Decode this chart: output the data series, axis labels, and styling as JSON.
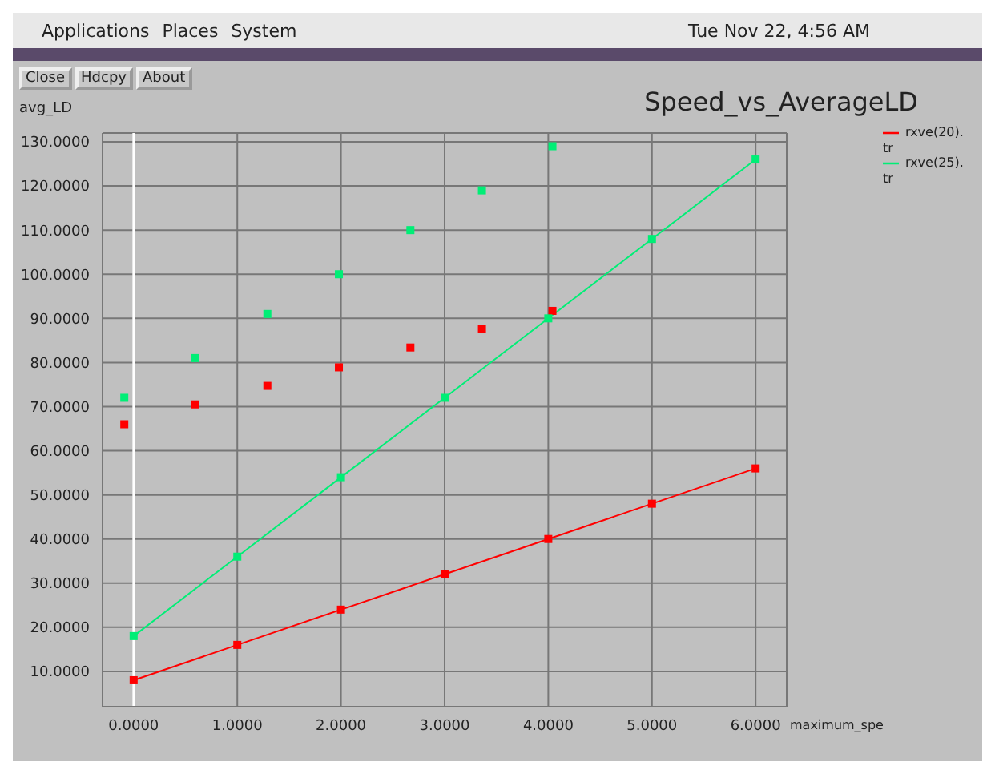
{
  "chart_data": {
    "type": "line",
    "title": "Speed_vs_AverageLD",
    "xlabel": "maximum_spe",
    "ylabel": "avg_LD",
    "annotations": [
      "Applications",
      "Places",
      "System",
      "Tue Nov 22, 4:56 AM",
      "Close",
      "Hdcpy",
      "About"
    ],
    "series": [
      {
        "name": "rxve(20).tr",
        "color": "#ff0000",
        "x": [
          0,
          1,
          2,
          3,
          4,
          5,
          6
        ],
        "values": [
          8,
          16,
          24,
          32,
          40,
          48,
          56
        ]
      },
      {
        "name": "rxve(25).tr",
        "color": "#00ee76",
        "x": [
          0,
          1,
          2,
          3,
          4,
          5,
          6
        ],
        "values": [
          18,
          36,
          54,
          72,
          90,
          108,
          126
        ]
      },
      {
        "type": "scatter",
        "color": "#ff0000",
        "x": [
          -0.09,
          0.59,
          1.29,
          1.98,
          2.67,
          3.36,
          4.04
        ],
        "values": [
          66,
          70.5,
          74.7,
          78.9,
          83.4,
          87.6,
          91.7
        ]
      },
      {
        "type": "scatter",
        "color": "#00ee76",
        "x": [
          -0.09,
          0.59,
          1.29,
          1.98,
          2.67,
          3.36,
          4.04
        ],
        "values": [
          72,
          81,
          91,
          100,
          110,
          119,
          129
        ]
      }
    ],
    "xlim": [
      -0.3,
      6.3
    ],
    "ylim": [
      2,
      132
    ],
    "xticks": [
      {
        "value": 0,
        "label": "0.0000"
      },
      {
        "value": 1,
        "label": "1.0000"
      },
      {
        "value": 2,
        "label": "2.0000"
      },
      {
        "value": 3,
        "label": "3.0000"
      },
      {
        "value": 4,
        "label": "4.0000"
      },
      {
        "value": 5,
        "label": "5.0000"
      },
      {
        "value": 6,
        "label": "6.0000"
      }
    ],
    "yticks": [
      {
        "value": 10,
        "label": "10.0000"
      },
      {
        "value": 20,
        "label": "20.0000"
      },
      {
        "value": 30,
        "label": "30.0000"
      },
      {
        "value": 40,
        "label": "40.0000"
      },
      {
        "value": 50,
        "label": "50.0000"
      },
      {
        "value": 60,
        "label": "60.0000"
      },
      {
        "value": 70,
        "label": "70.0000"
      },
      {
        "value": 80,
        "label": "80.0000"
      },
      {
        "value": 90,
        "label": "90.0000"
      },
      {
        "value": 100,
        "label": "100.0000"
      },
      {
        "value": 110,
        "label": "110.0000"
      },
      {
        "value": 120,
        "label": "120.0000"
      },
      {
        "value": 130,
        "label": "130.0000"
      }
    ],
    "ref_lines": [
      {
        "axis": "x",
        "value": 0,
        "color": "#ffffff"
      }
    ],
    "grid": true,
    "legend": "top right",
    "marker": "square",
    "line_style": "solid"
  }
}
